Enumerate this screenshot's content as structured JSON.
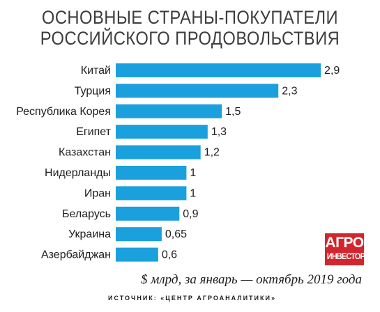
{
  "header": {
    "title_line1": "ОСНОВНЫЕ СТРАНЫ-ПОКУПАТЕЛИ",
    "title_line2": "РОССИЙСКОГО ПРОДОВОЛЬСТВИЯ"
  },
  "logo": {
    "line1": "АГРО",
    "line2": "ИНВЕСТОР"
  },
  "footer": {
    "units_note": "$ млрд, за январь — октябрь 2019 года",
    "source": "ИСТОЧНИК: «ЦЕНТР АГРОАНАЛИТИКИ»"
  },
  "colors": {
    "bar": "#1aa0dc",
    "logo": "#d2262e",
    "title": "#3c3d3f"
  },
  "chart_data": {
    "type": "bar",
    "orientation": "horizontal",
    "title": "ОСНОВНЫЕ СТРАНЫ-ПОКУПАТЕЛИ РОССИЙСКОГО ПРОДОВОЛЬСТВИЯ",
    "unit": "$ млрд, за январь — октябрь 2019 года",
    "categories": [
      "Китай",
      "Турция",
      "Республика Корея",
      "Египет",
      "Казахстан",
      "Нидерланды",
      "Иран",
      "Беларусь",
      "Украина",
      "Азербайджан"
    ],
    "values": [
      2.9,
      2.3,
      1.5,
      1.3,
      1.2,
      1,
      1,
      0.9,
      0.65,
      0.6
    ],
    "value_labels": [
      "2,9",
      "2,3",
      "1,5",
      "1,3",
      "1,2",
      "1",
      "1",
      "0,9",
      "0,65",
      "0,6"
    ],
    "grid": false,
    "legend": "none"
  }
}
